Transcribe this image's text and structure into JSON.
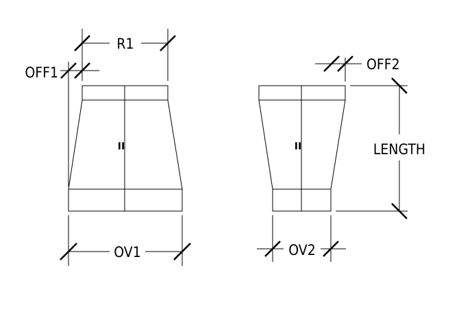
{
  "labels": {
    "r1": "R1",
    "off1": "OFF1",
    "off2": "OFF2",
    "length": "LENGTH",
    "ov1": "OV1",
    "ov2": "OV2",
    "left_center_mark": "II",
    "right_center_mark": "II"
  },
  "colors": {
    "line": "#000000",
    "background": "#ffffff"
  }
}
